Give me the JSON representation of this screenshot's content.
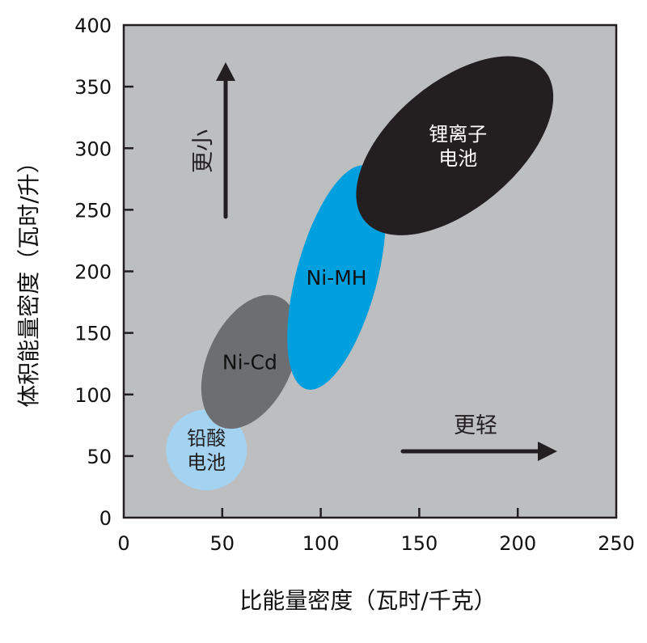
{
  "chart_data": {
    "type": "scatter",
    "title": "",
    "xlabel": "比能量密度（瓦时/千克）",
    "ylabel": "体积能量密度（瓦时/升）",
    "xlim": [
      0,
      250
    ],
    "ylim": [
      0,
      400
    ],
    "xticks": [
      "0",
      "50",
      "100",
      "150",
      "200",
      "250"
    ],
    "yticks": [
      "0",
      "50",
      "100",
      "150",
      "200",
      "250",
      "300",
      "350",
      "400"
    ],
    "grid": false,
    "background": "#bcbec0",
    "regions": [
      {
        "name": "铅酸电池",
        "label_lines": [
          "铅酸",
          "电池"
        ],
        "x_range": [
          21,
          63
        ],
        "y_range": [
          22,
          88
        ],
        "color": "#a3d3f0",
        "text_color": "#231f20"
      },
      {
        "name": "Ni-Cd",
        "label_lines": [
          "Ni-Cd"
        ],
        "x_range": [
          40,
          88
        ],
        "y_range": [
          72,
          181
        ],
        "color": "#6d6e71",
        "text_color": "#111111"
      },
      {
        "name": "Ni-MH",
        "label_lines": [
          "Ni-MH"
        ],
        "x_range": [
          83,
          133
        ],
        "y_range": [
          104,
          286
        ],
        "color": "#00a0de",
        "text_color": "#111111"
      },
      {
        "name": "锂离子电池",
        "label_lines": [
          "锂离子",
          "电池"
        ],
        "x_range": [
          122,
          214
        ],
        "y_range": [
          231,
          373
        ],
        "color": "#231f20",
        "text_color": "#ffffff"
      }
    ],
    "annotations": [
      {
        "text": "更小",
        "direction": "up"
      },
      {
        "text": "更轻",
        "direction": "right"
      }
    ]
  }
}
